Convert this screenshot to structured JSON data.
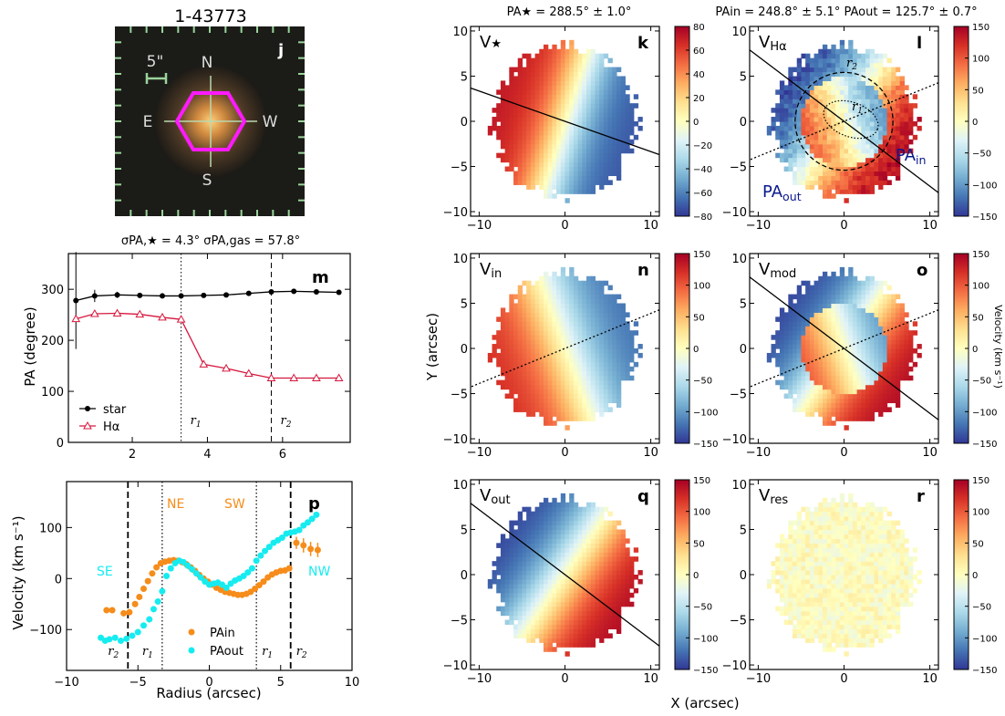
{
  "image_panel": {
    "title": "1-43773",
    "panel_label": "j",
    "scale_label": "5\"",
    "compass": {
      "n": "N",
      "e": "E",
      "w": "W",
      "s": "S"
    },
    "colors": {
      "hexagon": "#ff1aff",
      "frame_tick": "#9bd49b"
    }
  },
  "top_titles": {
    "star": "PA★ = 288.5° ± 1.0°",
    "gas": "PAin = 248.8° ± 5.1°    PAout = 125.7° ± 0.7°"
  },
  "shared_axes": {
    "x_label": "X (arcsec)",
    "y_label": "Y (arcsec)",
    "colorbar_label": "Velocity (km s⁻¹)"
  },
  "chart_data": [
    {
      "id": "m",
      "type": "line",
      "panel_label": "m",
      "title": "σPA,★ = 4.3°    σPA,gas = 57.8°",
      "xlabel": "",
      "ylabel": "PA (degree)",
      "xlim": [
        0.3,
        7.8
      ],
      "ylim": [
        0,
        370
      ],
      "xticks": [
        2,
        4,
        6
      ],
      "yticks": [
        0,
        100,
        200,
        300
      ],
      "series": [
        {
          "name": "star",
          "color": "#000000",
          "marker": "circle",
          "x": [
            0.5,
            1.0,
            1.6,
            2.2,
            2.8,
            3.3,
            3.9,
            4.5,
            5.1,
            5.7,
            6.3,
            6.9,
            7.5
          ],
          "y": [
            278,
            287,
            289,
            288,
            287,
            287,
            288,
            289,
            292,
            295,
            296,
            295,
            294
          ],
          "err": [
            95,
            12,
            6,
            4,
            3,
            3,
            3,
            3,
            3,
            3,
            3,
            3,
            3
          ]
        },
        {
          "name": "Hα",
          "color": "#d6173d",
          "marker": "triangle",
          "x": [
            0.5,
            1.0,
            1.6,
            2.2,
            2.8,
            3.3,
            3.9,
            4.5,
            5.1,
            5.7,
            6.3,
            6.9,
            7.5
          ],
          "y": [
            242,
            252,
            253,
            251,
            245,
            241,
            153,
            145,
            135,
            126,
            126,
            126,
            126
          ],
          "err": [
            0,
            0,
            0,
            0,
            0,
            0,
            0,
            0,
            0,
            0,
            0,
            0,
            0
          ]
        }
      ],
      "vlines": [
        {
          "x": 3.3,
          "style": "dotted",
          "label": "r1"
        },
        {
          "x": 5.7,
          "style": "dashed",
          "label": "r2"
        }
      ]
    },
    {
      "id": "p",
      "type": "scatter",
      "panel_label": "p",
      "xlabel": "Radius (arcsec)",
      "ylabel": "Velocity (km s⁻¹)",
      "xlim": [
        -10,
        10
      ],
      "ylim": [
        -180,
        190
      ],
      "xticks": [
        -10,
        -5,
        0,
        5,
        10
      ],
      "yticks": [
        -100,
        0,
        100
      ],
      "labels": {
        "se": "SE",
        "ne": "NE",
        "sw": "SW",
        "nw": "NW"
      },
      "series": [
        {
          "name": "PAin",
          "color": "#f68c1a",
          "x": [
            -7.2,
            -6.8,
            -6.0,
            -5.6,
            -5.2,
            -4.9,
            -4.6,
            -4.3,
            -4.0,
            -3.7,
            -3.4,
            -3.1,
            -2.8,
            -2.5,
            -2.2,
            -1.9,
            -1.6,
            -1.3,
            -1.0,
            -0.7,
            -0.4,
            -0.1,
            0.2,
            0.5,
            0.8,
            1.1,
            1.4,
            1.7,
            2.0,
            2.3,
            2.6,
            2.9,
            3.2,
            3.5,
            3.8,
            4.1,
            4.4,
            4.7,
            5.0,
            5.3,
            5.6,
            6.1,
            6.6,
            7.1,
            7.6
          ],
          "y": [
            -62,
            -62,
            -68,
            -66,
            -50,
            -36,
            -20,
            -5,
            10,
            22,
            30,
            33,
            35,
            36,
            35,
            32,
            28,
            22,
            15,
            7,
            0,
            -6,
            -12,
            -18,
            -22,
            -26,
            -28,
            -30,
            -32,
            -32,
            -30,
            -26,
            -20,
            -13,
            -6,
            2,
            8,
            12,
            15,
            16,
            20,
            70,
            65,
            58,
            56
          ],
          "err": [
            0,
            0,
            0,
            0,
            0,
            0,
            0,
            0,
            0,
            0,
            0,
            0,
            0,
            0,
            0,
            0,
            0,
            0,
            0,
            0,
            0,
            0,
            0,
            0,
            0,
            0,
            0,
            0,
            0,
            0,
            0,
            0,
            0,
            0,
            0,
            0,
            0,
            0,
            0,
            0,
            0,
            12,
            14,
            14,
            14
          ]
        },
        {
          "name": "PAout",
          "color": "#16ecf0",
          "x": [
            -7.6,
            -7.3,
            -7.0,
            -6.6,
            -6.2,
            -5.8,
            -5.4,
            -5.0,
            -4.6,
            -4.2,
            -3.9,
            -3.6,
            -3.3,
            -3.0,
            -2.7,
            -2.4,
            -2.1,
            -1.8,
            -1.5,
            -1.2,
            -0.9,
            -0.6,
            -0.3,
            0.0,
            0.3,
            0.6,
            0.9,
            1.2,
            1.5,
            1.8,
            2.1,
            2.4,
            2.7,
            3.0,
            3.3,
            3.6,
            3.9,
            4.2,
            4.5,
            4.8,
            5.1,
            5.4,
            5.7,
            6.0,
            6.3,
            6.6,
            6.9,
            7.2,
            7.5
          ],
          "y": [
            -116,
            -122,
            -119,
            -116,
            -122,
            -118,
            -112,
            -105,
            -92,
            -80,
            -60,
            -45,
            -25,
            5,
            20,
            30,
            35,
            32,
            25,
            18,
            10,
            2,
            -6,
            -12,
            -10,
            -8,
            -12,
            -18,
            -10,
            -4,
            0,
            5,
            12,
            20,
            35,
            45,
            54,
            62,
            70,
            75,
            80,
            88,
            90,
            92,
            95,
            104,
            110,
            117,
            125
          ],
          "err": []
        }
      ],
      "vlines": [
        {
          "x": -5.7,
          "style": "dashed",
          "label": "r2"
        },
        {
          "x": -3.3,
          "style": "dotted",
          "label": "r1"
        },
        {
          "x": 3.3,
          "style": "dotted",
          "label": "r1"
        },
        {
          "x": 5.7,
          "style": "dashed",
          "label": "r2"
        }
      ]
    },
    {
      "id": "maps",
      "type": "heatmap",
      "xlabel": "X (arcsec)",
      "ylabel": "Y (arcsec)",
      "xlim": [
        -11,
        11
      ],
      "ylim": [
        -10.5,
        10.5
      ],
      "xticks": [
        -10,
        0,
        10
      ],
      "yticks": [
        -10,
        -5,
        0,
        5,
        10
      ],
      "colormap": "RdYlBu_r",
      "panels": [
        {
          "key": "k",
          "label": "V★",
          "panel_label": "k",
          "pa_in": null,
          "pa_out": 288.5,
          "vmax": 120,
          "cbar_max": 80,
          "cbar_ticks": [
            80,
            60,
            40,
            20,
            0,
            -20,
            -40,
            -60,
            -80
          ]
        },
        {
          "key": "l",
          "label": "VHα",
          "panel_label": "l",
          "pa_in": 248.8,
          "pa_out": 125.7,
          "vmax": 150,
          "cbar_max": 150,
          "cbar_ticks": [
            150,
            100,
            50,
            0,
            -50,
            -100,
            -150
          ],
          "annotations": {
            "pa_in": "PAin",
            "pa_out": "PAout",
            "r1": "r1",
            "r2": "r2"
          }
        },
        {
          "key": "n",
          "label": "Vin",
          "panel_label": "n",
          "pa_in": 248.8,
          "pa_out": null,
          "vmax": 150,
          "cbar_max": 150,
          "cbar_ticks": [
            150,
            100,
            50,
            0,
            -50,
            -100,
            -150
          ]
        },
        {
          "key": "o",
          "label": "Vmod",
          "panel_label": "o",
          "pa_in": 248.8,
          "pa_out": 125.7,
          "vmax": 150,
          "cbar_max": 150,
          "cbar_ticks": [
            150,
            100,
            50,
            0,
            -50,
            -100,
            -150
          ]
        },
        {
          "key": "q",
          "label": "Vout",
          "panel_label": "q",
          "pa_in": null,
          "pa_out": 125.7,
          "vmax": 150,
          "cbar_max": 150,
          "cbar_ticks": [
            150,
            100,
            50,
            0,
            -50,
            -100,
            -150
          ]
        },
        {
          "key": "r",
          "label": "Vres",
          "panel_label": "r",
          "pa_in": null,
          "pa_out": null,
          "vmax": 150,
          "cbar_max": 150,
          "cbar_ticks": [
            150,
            100,
            50,
            0,
            -50,
            -100,
            -150
          ]
        }
      ]
    }
  ]
}
